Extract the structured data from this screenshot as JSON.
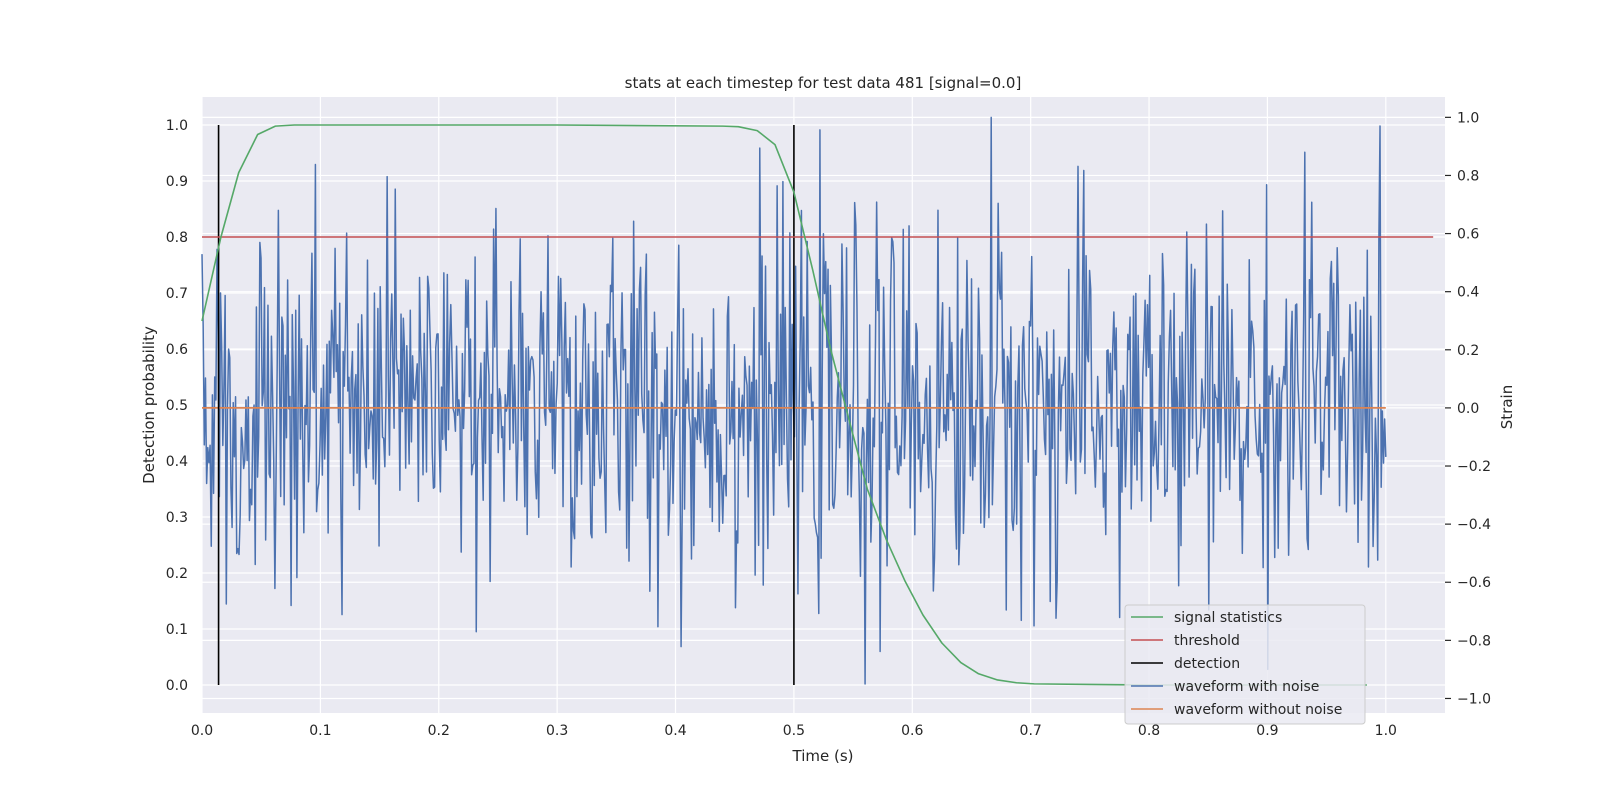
{
  "chart_data": {
    "type": "line",
    "title": "stats at each timestep for test data 481 [signal=0.0]",
    "xlabel": "Time (s)",
    "ylabel_left": "Detection probability",
    "ylabel_right": "Strain",
    "xlim": [
      0.0,
      1.05
    ],
    "ylim_left": [
      -0.05,
      1.05
    ],
    "ylim_right": [
      -1.05,
      1.07
    ],
    "x_ticks": [
      0.0,
      0.1,
      0.2,
      0.3,
      0.4,
      0.5,
      0.6,
      0.7,
      0.8,
      0.9,
      1.0
    ],
    "x_tick_labels": [
      "0.0",
      "0.1",
      "0.2",
      "0.3",
      "0.4",
      "0.5",
      "0.6",
      "0.7",
      "0.8",
      "0.9",
      "1.0"
    ],
    "y_left_ticks": [
      0.0,
      0.1,
      0.2,
      0.3,
      0.4,
      0.5,
      0.6,
      0.7,
      0.8,
      0.9,
      1.0
    ],
    "y_left_tick_labels": [
      "0.0",
      "0.1",
      "0.2",
      "0.3",
      "0.4",
      "0.5",
      "0.6",
      "0.7",
      "0.8",
      "0.9",
      "1.0"
    ],
    "y_right_ticks": [
      -1.0,
      -0.8,
      -0.6,
      -0.4,
      -0.2,
      0.0,
      0.2,
      0.4,
      0.6,
      0.8,
      1.0
    ],
    "y_right_tick_labels": [
      "−1.0",
      "−0.8",
      "−0.6",
      "−0.4",
      "−0.2",
      "0.0",
      "0.2",
      "0.4",
      "0.6",
      "0.8",
      "1.0"
    ],
    "grid": true,
    "legend_position": "bottom-right",
    "series": [
      {
        "name": "signal statistics",
        "color": "#55a868",
        "axis": "left",
        "x": [
          0.0,
          0.016,
          0.031,
          0.047,
          0.062,
          0.078,
          0.094,
          0.3,
          0.44,
          0.453,
          0.469,
          0.484,
          0.5,
          0.516,
          0.531,
          0.547,
          0.562,
          0.578,
          0.594,
          0.609,
          0.625,
          0.641,
          0.656,
          0.672,
          0.688,
          0.703,
          0.75,
          0.8,
          0.9,
          0.984
        ],
        "values": [
          0.65,
          0.8,
          0.915,
          0.983,
          0.998,
          1.0,
          1.0,
          1.0,
          0.998,
          0.997,
          0.99,
          0.965,
          0.88,
          0.74,
          0.6,
          0.47,
          0.35,
          0.26,
          0.185,
          0.125,
          0.075,
          0.04,
          0.02,
          0.009,
          0.004,
          0.002,
          0.001,
          0.0,
          0.0,
          0.0
        ]
      },
      {
        "name": "threshold",
        "color": "#c44e52",
        "axis": "left",
        "x": [
          0.0,
          1.04
        ],
        "values": [
          0.8,
          0.8
        ]
      },
      {
        "name": "detection",
        "color": "#000000",
        "axis": "left",
        "segments": [
          {
            "x": 0.014,
            "y0": 0.0,
            "y1": 1.0
          },
          {
            "x": 0.5,
            "y0": 0.0,
            "y1": 1.0
          }
        ]
      },
      {
        "name": "waveform with noise",
        "color": "#4c72b0",
        "axis": "right",
        "description_samples": 2048,
        "x_range": [
          0.0,
          1.0
        ],
        "noise_std": 0.3,
        "notable_points": [
          {
            "x": 0.56,
            "value": -0.95
          },
          {
            "x": 0.667,
            "value": 1.0
          },
          {
            "x": 0.703,
            "value": -0.75
          },
          {
            "x": 0.932,
            "value": 0.88
          }
        ]
      },
      {
        "name": "waveform without noise",
        "color": "#dd8452",
        "axis": "right",
        "x": [
          0.0,
          1.0
        ],
        "values": [
          0.0,
          0.0
        ]
      }
    ]
  }
}
